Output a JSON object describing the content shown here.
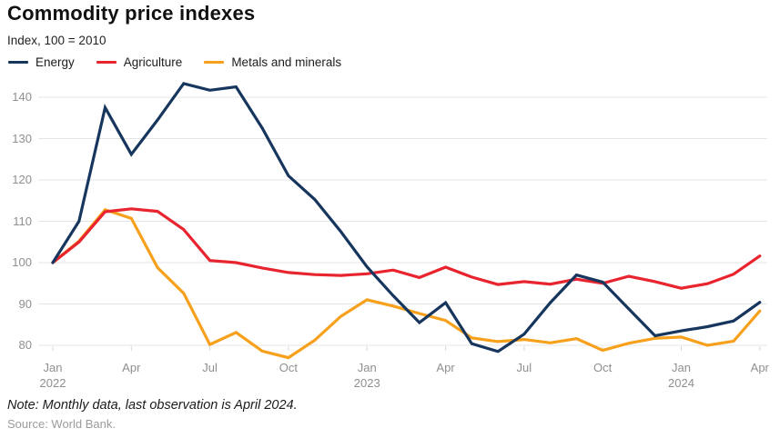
{
  "header": {
    "title": "Commodity price indexes",
    "subtitle": "Index, 100 = 2010"
  },
  "footer": {
    "note": "Note: Monthly data, last observation is April 2024.",
    "source": "Source: World Bank."
  },
  "colors": {
    "energy": "#17365d",
    "agriculture": "#e8242f",
    "metals": "#f7a01c",
    "gridline": "#e4e4e4",
    "axis_text": "#8f8f8f"
  },
  "chart_data": {
    "type": "line",
    "title": "Commodity price indexes",
    "subtitle": "Index, 100 = 2010",
    "xlabel": "",
    "ylabel": "Index, 100 = 2010",
    "ylim": [
      80,
      140
    ],
    "grid": true,
    "legend_position": "top",
    "x": [
      "Jan 2022",
      "Feb 2022",
      "Mar 2022",
      "Apr 2022",
      "May 2022",
      "Jun 2022",
      "Jul 2022",
      "Aug 2022",
      "Sep 2022",
      "Oct 2022",
      "Nov 2022",
      "Dec 2022",
      "Jan 2023",
      "Feb 2023",
      "Mar 2023",
      "Apr 2023",
      "May 2023",
      "Jun 2023",
      "Jul 2023",
      "Aug 2023",
      "Sep 2023",
      "Oct 2023",
      "Nov 2023",
      "Dec 2023",
      "Jan 2024",
      "Feb 2024",
      "Mar 2024",
      "Apr 2024"
    ],
    "y_ticks": [
      80,
      90,
      100,
      110,
      120,
      130,
      140
    ],
    "x_ticks": [
      {
        "index": 0,
        "label": "Jan",
        "year": "2022"
      },
      {
        "index": 3,
        "label": "Apr",
        "year": ""
      },
      {
        "index": 6,
        "label": "Jul",
        "year": ""
      },
      {
        "index": 9,
        "label": "Oct",
        "year": ""
      },
      {
        "index": 12,
        "label": "Jan",
        "year": "2023"
      },
      {
        "index": 15,
        "label": "Apr",
        "year": ""
      },
      {
        "index": 18,
        "label": "Jul",
        "year": ""
      },
      {
        "index": 21,
        "label": "Oct",
        "year": ""
      },
      {
        "index": 24,
        "label": "Jan",
        "year": "2024"
      },
      {
        "index": 27,
        "label": "Apr",
        "year": ""
      }
    ],
    "series": [
      {
        "name": "Energy",
        "color": "#17365d",
        "values": [
          100,
          110,
          137.5,
          126.2,
          134.5,
          143.3,
          141.7,
          142.5,
          132.5,
          121,
          115.3,
          107.5,
          99,
          92,
          85.5,
          90.3,
          80.4,
          78.5,
          82.7,
          90.3,
          97,
          95.3,
          88.8,
          82.3,
          83.5,
          84.5,
          85.9,
          90.4
        ]
      },
      {
        "name": "Agriculture",
        "color": "#e8242f",
        "values": [
          100,
          105,
          112.3,
          113,
          112.4,
          108,
          100.5,
          100,
          98.7,
          97.6,
          97.1,
          96.9,
          97.3,
          98.2,
          96.4,
          98.9,
          96.5,
          94.7,
          95.4,
          94.8,
          96,
          95,
          96.7,
          95.4,
          93.8,
          94.9,
          97.2,
          101.6
        ]
      },
      {
        "name": "Metals and minerals",
        "color": "#f7a01c",
        "values": [
          100,
          105.2,
          112.8,
          110.7,
          98.8,
          92.6,
          80.2,
          83.1,
          78.6,
          77,
          81.2,
          87,
          91,
          89.5,
          87.7,
          86,
          81.8,
          80.9,
          81.4,
          80.6,
          81.6,
          78.8,
          80.5,
          81.7,
          82,
          80,
          81,
          88.3
        ]
      }
    ]
  }
}
